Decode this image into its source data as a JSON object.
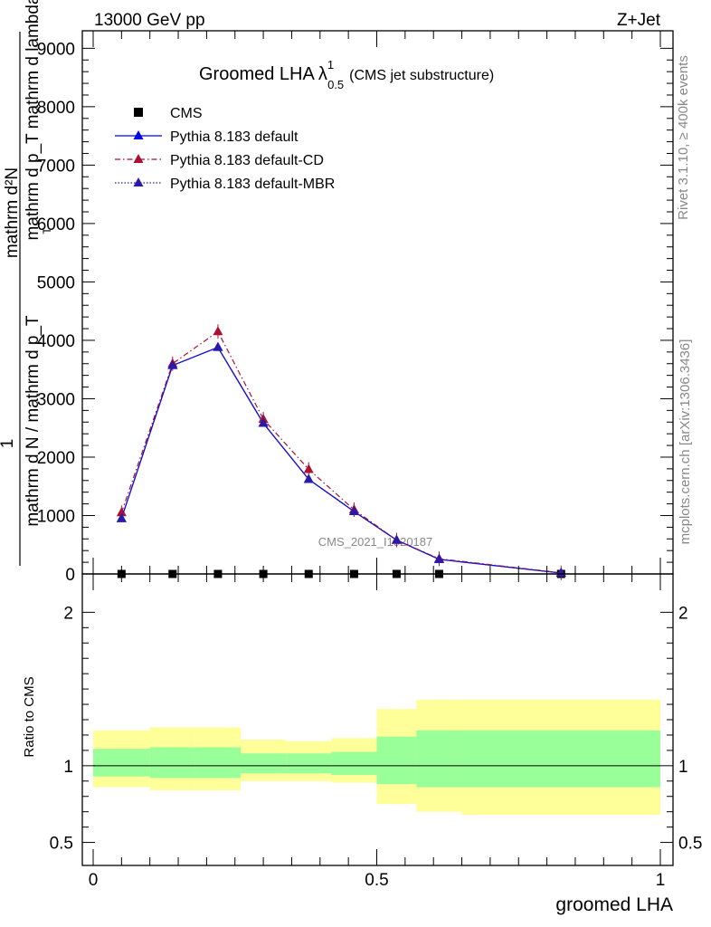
{
  "header": {
    "left": "13000 GeV pp",
    "right": "Z+Jet"
  },
  "side_labels": {
    "rivet": "Rivet 3.1.10, ≥ 400k events",
    "mcplots": "mcplots.cern.ch [arXiv:1306.3436]"
  },
  "watermark": "CMS_2021_I1920187",
  "chart_data": [
    {
      "type": "line",
      "title_main": "Groomed LHA",
      "title_lambda": "λ",
      "title_sup": "1",
      "title_sub": "0.5",
      "title_note": "(CMS jet substructure)",
      "ylabel_top": "mathrm d²N",
      "ylabel_top2": "mathrm d p_T mathrm d lambda",
      "ylabel_one": "1",
      "ylabel_bottom": "mathrm d N / mathrm d p_T",
      "ylabel_subT": "T",
      "xlim": [
        0,
        1
      ],
      "ylim": [
        0,
        9300
      ],
      "ytick_values": [
        0,
        1000,
        2000,
        3000,
        4000,
        5000,
        6000,
        7000,
        8000,
        9000
      ],
      "ytick_labels": [
        "0",
        "1000",
        "2000",
        "3000",
        "4000",
        "5000",
        "6000",
        "7000",
        "8000",
        "9000"
      ],
      "legend": [
        {
          "name": "CMS",
          "marker": "square",
          "color": "#000000"
        },
        {
          "name": "Pythia 8.183 default",
          "marker": "triangle",
          "color": "#0000ee"
        },
        {
          "name": "Pythia 8.183 default-CD",
          "marker": "triangle",
          "color": "#aa1133"
        },
        {
          "name": "Pythia 8.183 default-MBR",
          "marker": "triangle",
          "color": "#2a1aaa"
        }
      ],
      "bin_edges": [
        0,
        0.1,
        0.18,
        0.26,
        0.34,
        0.42,
        0.5,
        0.57,
        0.65,
        1.0
      ],
      "x": [
        0.05,
        0.14,
        0.22,
        0.3,
        0.38,
        0.46,
        0.535,
        0.61,
        0.825
      ],
      "series": [
        {
          "name": "CMS",
          "values": [
            0,
            0,
            0,
            0,
            0,
            0,
            0,
            0,
            0
          ],
          "color": "#000000"
        },
        {
          "name": "Pythia 8.183 default",
          "values": [
            950,
            3570,
            3880,
            2580,
            1620,
            1070,
            580,
            250,
            15
          ],
          "color": "#0000ee"
        },
        {
          "name": "Pythia 8.183 default-CD",
          "values": [
            1050,
            3600,
            4150,
            2650,
            1790,
            1100,
            580,
            260,
            18
          ],
          "color": "#aa1133"
        },
        {
          "name": "Pythia 8.183 default-MBR",
          "values": [
            950,
            3570,
            3880,
            2580,
            1620,
            1070,
            580,
            250,
            15
          ],
          "color": "#2a1aaa"
        }
      ]
    },
    {
      "type": "area",
      "ylabel": "Ratio to CMS",
      "xlabel": "groomed LHA",
      "xlim": [
        0,
        1
      ],
      "ylim": [
        0.35,
        2.25
      ],
      "ytick_values": [
        0.5,
        1,
        2
      ],
      "ytick_labels": [
        "0.5",
        "1",
        "2"
      ],
      "xtick_values": [
        0,
        0.5,
        1
      ],
      "xtick_labels": [
        "0",
        "0.5",
        "1"
      ],
      "reference": 1,
      "bin_edges": [
        0,
        0.1,
        0.18,
        0.26,
        0.34,
        0.42,
        0.5,
        0.57,
        0.65,
        1.0
      ],
      "band_outer": {
        "color": "#ffff99",
        "low": [
          0.86,
          0.84,
          0.84,
          0.9,
          0.9,
          0.89,
          0.75,
          0.7,
          0.68
        ],
        "high": [
          1.23,
          1.25,
          1.25,
          1.17,
          1.16,
          1.18,
          1.37,
          1.43,
          1.43
        ]
      },
      "band_inner": {
        "color": "#99ff99",
        "low": [
          0.93,
          0.92,
          0.92,
          0.95,
          0.95,
          0.94,
          0.88,
          0.86,
          0.86
        ],
        "high": [
          1.11,
          1.12,
          1.12,
          1.08,
          1.08,
          1.09,
          1.19,
          1.23,
          1.23
        ]
      }
    }
  ]
}
